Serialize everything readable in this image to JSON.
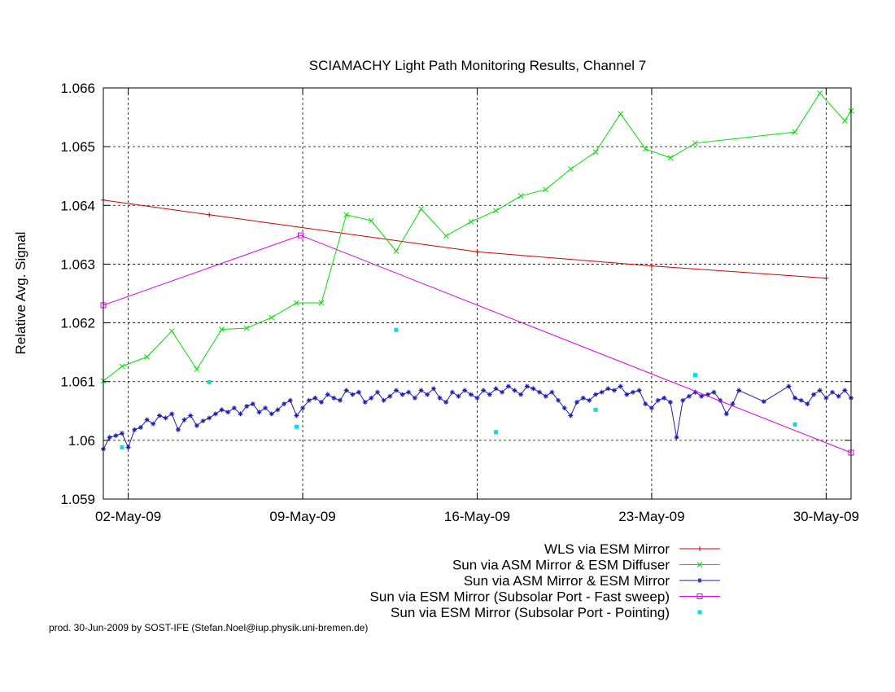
{
  "chart_data": {
    "type": "line",
    "title": "SCIAMACHY Light Path Monitoring Results, Channel 7",
    "ylabel": "Relative Avg. Signal",
    "xlabel": "",
    "ylim": [
      1.059,
      1.066
    ],
    "xlim": [
      "2009-05-01 00:00",
      "2009-05-31 00:00"
    ],
    "yticks": [
      1.059,
      1.06,
      1.061,
      1.062,
      1.063,
      1.064,
      1.065,
      1.066
    ],
    "ytick_labels": [
      "1.059",
      "1.06",
      "1.061",
      "1.062",
      "1.063",
      "1.064",
      "1.065",
      "1.066"
    ],
    "xticks": [
      "2009-05-02",
      "2009-05-09",
      "2009-05-16",
      "2009-05-23",
      "2009-05-30"
    ],
    "xtick_labels": [
      "02-May-09",
      "09-May-09",
      "16-May-09",
      "23-May-09",
      "30-May-09"
    ],
    "grid": true,
    "legend_position": "bottom-right",
    "footer": "prod. 30-Jun-2009 by SOST-IFE (Stefan.Noel@iup.physik.uni-bremen.de)",
    "series": [
      {
        "name": "WLS via ESM Mirror",
        "color": "#d00000",
        "marker": "plus",
        "style": "line",
        "points": [
          [
            "2009-05-01 00:00",
            1.06409
          ],
          [
            "2009-05-05 06:00",
            1.06384
          ],
          [
            "2009-05-16 00:00",
            1.06321
          ],
          [
            "2009-05-23 00:00",
            1.06297
          ],
          [
            "2009-05-30 00:00",
            1.06276
          ]
        ]
      },
      {
        "name": "Sun via ASM Mirror & ESM Diffuser",
        "color": "#00e000",
        "marker": "x",
        "style": "line",
        "points": [
          [
            "2009-05-01 00:00",
            1.06101
          ],
          [
            "2009-05-01 18:00",
            1.06126
          ],
          [
            "2009-05-02 18:00",
            1.06142
          ],
          [
            "2009-05-03 18:00",
            1.06186
          ],
          [
            "2009-05-04 18:00",
            1.06121
          ],
          [
            "2009-05-05 18:00",
            1.06189
          ],
          [
            "2009-05-06 18:00",
            1.06191
          ],
          [
            "2009-05-07 18:00",
            1.06209
          ],
          [
            "2009-05-08 18:00",
            1.06234
          ],
          [
            "2009-05-09 18:00",
            1.06234
          ],
          [
            "2009-05-10 18:00",
            1.06384
          ],
          [
            "2009-05-11 18:00",
            1.06374
          ],
          [
            "2009-05-12 18:00",
            1.06322
          ],
          [
            "2009-05-13 18:00",
            1.06394
          ],
          [
            "2009-05-14 18:00",
            1.06348
          ],
          [
            "2009-05-15 18:00",
            1.06372
          ],
          [
            "2009-05-16 18:00",
            1.06391
          ],
          [
            "2009-05-17 18:00",
            1.06416
          ],
          [
            "2009-05-18 18:00",
            1.06427
          ],
          [
            "2009-05-19 18:00",
            1.06462
          ],
          [
            "2009-05-20 18:00",
            1.06491
          ],
          [
            "2009-05-21 18:00",
            1.06556
          ],
          [
            "2009-05-22 18:00",
            1.06496
          ],
          [
            "2009-05-23 18:00",
            1.06481
          ],
          [
            "2009-05-24 18:00",
            1.06506
          ],
          [
            "2009-05-28 18:00",
            1.06525
          ],
          [
            "2009-05-29 18:00",
            1.06591
          ],
          [
            "2009-05-30 18:00",
            1.06544
          ],
          [
            "2009-05-31 00:00",
            1.06561
          ]
        ]
      },
      {
        "name": "Sun via ASM Mirror & ESM Mirror",
        "color": "#1c1cb0",
        "marker": "star",
        "style": "line",
        "points": [
          [
            "2009-05-01 00:00",
            1.05985
          ],
          [
            "2009-05-01 06:00",
            1.06005
          ],
          [
            "2009-05-01 12:00",
            1.06008
          ],
          [
            "2009-05-01 18:00",
            1.06012
          ],
          [
            "2009-05-02 00:00",
            1.05988
          ],
          [
            "2009-05-02 06:00",
            1.06018
          ],
          [
            "2009-05-02 12:00",
            1.06022
          ],
          [
            "2009-05-02 18:00",
            1.06035
          ],
          [
            "2009-05-03 00:00",
            1.06028
          ],
          [
            "2009-05-03 06:00",
            1.06042
          ],
          [
            "2009-05-03 12:00",
            1.06038
          ],
          [
            "2009-05-03 18:00",
            1.06045
          ],
          [
            "2009-05-04 00:00",
            1.06018
          ],
          [
            "2009-05-04 06:00",
            1.06035
          ],
          [
            "2009-05-04 12:00",
            1.06042
          ],
          [
            "2009-05-04 18:00",
            1.06025
          ],
          [
            "2009-05-05 00:00",
            1.06033
          ],
          [
            "2009-05-05 06:00",
            1.06038
          ],
          [
            "2009-05-05 12:00",
            1.06045
          ],
          [
            "2009-05-05 18:00",
            1.06052
          ],
          [
            "2009-05-06 00:00",
            1.06048
          ],
          [
            "2009-05-06 06:00",
            1.06055
          ],
          [
            "2009-05-06 12:00",
            1.06045
          ],
          [
            "2009-05-06 18:00",
            1.06058
          ],
          [
            "2009-05-07 00:00",
            1.06062
          ],
          [
            "2009-05-07 06:00",
            1.06048
          ],
          [
            "2009-05-07 12:00",
            1.06055
          ],
          [
            "2009-05-07 18:00",
            1.06045
          ],
          [
            "2009-05-08 00:00",
            1.06052
          ],
          [
            "2009-05-08 06:00",
            1.06062
          ],
          [
            "2009-05-08 12:00",
            1.06068
          ],
          [
            "2009-05-08 18:00",
            1.06042
          ],
          [
            "2009-05-09 00:00",
            1.06055
          ],
          [
            "2009-05-09 06:00",
            1.06068
          ],
          [
            "2009-05-09 12:00",
            1.06072
          ],
          [
            "2009-05-09 18:00",
            1.06065
          ],
          [
            "2009-05-10 00:00",
            1.06078
          ],
          [
            "2009-05-10 06:00",
            1.06072
          ],
          [
            "2009-05-10 12:00",
            1.06068
          ],
          [
            "2009-05-10 18:00",
            1.06085
          ],
          [
            "2009-05-11 00:00",
            1.06078
          ],
          [
            "2009-05-11 06:00",
            1.06082
          ],
          [
            "2009-05-11 12:00",
            1.06065
          ],
          [
            "2009-05-11 18:00",
            1.06072
          ],
          [
            "2009-05-12 00:00",
            1.06082
          ],
          [
            "2009-05-12 06:00",
            1.06068
          ],
          [
            "2009-05-12 12:00",
            1.06075
          ],
          [
            "2009-05-12 18:00",
            1.06085
          ],
          [
            "2009-05-13 00:00",
            1.06078
          ],
          [
            "2009-05-13 06:00",
            1.06082
          ],
          [
            "2009-05-13 12:00",
            1.06072
          ],
          [
            "2009-05-13 18:00",
            1.06085
          ],
          [
            "2009-05-14 00:00",
            1.06078
          ],
          [
            "2009-05-14 06:00",
            1.06088
          ],
          [
            "2009-05-14 12:00",
            1.06072
          ],
          [
            "2009-05-14 18:00",
            1.06065
          ],
          [
            "2009-05-15 00:00",
            1.06082
          ],
          [
            "2009-05-15 06:00",
            1.06075
          ],
          [
            "2009-05-15 12:00",
            1.06085
          ],
          [
            "2009-05-15 18:00",
            1.06078
          ],
          [
            "2009-05-16 00:00",
            1.06072
          ],
          [
            "2009-05-16 06:00",
            1.06085
          ],
          [
            "2009-05-16 12:00",
            1.06078
          ],
          [
            "2009-05-16 18:00",
            1.06088
          ],
          [
            "2009-05-17 00:00",
            1.06082
          ],
          [
            "2009-05-17 06:00",
            1.06092
          ],
          [
            "2009-05-17 12:00",
            1.06085
          ],
          [
            "2009-05-17 18:00",
            1.06078
          ],
          [
            "2009-05-18 00:00",
            1.06092
          ],
          [
            "2009-05-18 06:00",
            1.06088
          ],
          [
            "2009-05-18 12:00",
            1.06082
          ],
          [
            "2009-05-18 18:00",
            1.06075
          ],
          [
            "2009-05-19 00:00",
            1.06082
          ],
          [
            "2009-05-19 06:00",
            1.06068
          ],
          [
            "2009-05-19 12:00",
            1.06055
          ],
          [
            "2009-05-19 18:00",
            1.06042
          ],
          [
            "2009-05-20 00:00",
            1.06065
          ],
          [
            "2009-05-20 06:00",
            1.06072
          ],
          [
            "2009-05-20 12:00",
            1.06068
          ],
          [
            "2009-05-20 18:00",
            1.06078
          ],
          [
            "2009-05-21 00:00",
            1.06082
          ],
          [
            "2009-05-21 06:00",
            1.06088
          ],
          [
            "2009-05-21 12:00",
            1.06085
          ],
          [
            "2009-05-21 18:00",
            1.06092
          ],
          [
            "2009-05-22 00:00",
            1.06078
          ],
          [
            "2009-05-22 06:00",
            1.06082
          ],
          [
            "2009-05-22 12:00",
            1.06085
          ],
          [
            "2009-05-22 18:00",
            1.06062
          ],
          [
            "2009-05-23 00:00",
            1.06055
          ],
          [
            "2009-05-23 06:00",
            1.06068
          ],
          [
            "2009-05-23 12:00",
            1.06072
          ],
          [
            "2009-05-23 18:00",
            1.06065
          ],
          [
            "2009-05-24 00:00",
            1.06005
          ],
          [
            "2009-05-24 06:00",
            1.06068
          ],
          [
            "2009-05-24 12:00",
            1.06075
          ],
          [
            "2009-05-24 18:00",
            1.06082
          ],
          [
            "2009-05-25 00:00",
            1.06075
          ],
          [
            "2009-05-25 06:00",
            1.06078
          ],
          [
            "2009-05-25 12:00",
            1.06082
          ],
          [
            "2009-05-25 18:00",
            1.06068
          ],
          [
            "2009-05-26 00:00",
            1.06045
          ],
          [
            "2009-05-26 06:00",
            1.06062
          ],
          [
            "2009-05-26 12:00",
            1.06085
          ],
          [
            "2009-05-27 12:00",
            1.06066
          ],
          [
            "2009-05-28 12:00",
            1.06092
          ],
          [
            "2009-05-28 18:00",
            1.06072
          ],
          [
            "2009-05-29 00:00",
            1.06068
          ],
          [
            "2009-05-29 06:00",
            1.06062
          ],
          [
            "2009-05-29 12:00",
            1.06078
          ],
          [
            "2009-05-29 18:00",
            1.06085
          ],
          [
            "2009-05-30 00:00",
            1.06072
          ],
          [
            "2009-05-30 06:00",
            1.06082
          ],
          [
            "2009-05-30 12:00",
            1.06075
          ],
          [
            "2009-05-30 18:00",
            1.06085
          ],
          [
            "2009-05-31 00:00",
            1.06072
          ]
        ]
      },
      {
        "name": "Sun via ESM Mirror (Subsolar Port - Fast sweep)",
        "color": "#e000e0",
        "marker": "square",
        "style": "line",
        "points": [
          [
            "2009-05-01 00:00",
            1.0623
          ],
          [
            "2009-05-08 22:00",
            1.06349
          ],
          [
            "2009-05-31 00:00",
            1.05979
          ]
        ]
      },
      {
        "name": "Sun via ESM Mirror (Subsolar Port - Pointing)",
        "color": "#00e0e0",
        "marker": "dot",
        "style": "points",
        "points": [
          [
            "2009-05-01 18:00",
            1.05988
          ],
          [
            "2009-05-05 06:00",
            1.06099
          ],
          [
            "2009-05-08 18:00",
            1.06023
          ],
          [
            "2009-05-12 18:00",
            1.06188
          ],
          [
            "2009-05-16 18:00",
            1.06014
          ],
          [
            "2009-05-20 18:00",
            1.06052
          ],
          [
            "2009-05-24 18:00",
            1.06111
          ],
          [
            "2009-05-28 18:00",
            1.06027
          ]
        ]
      }
    ]
  }
}
